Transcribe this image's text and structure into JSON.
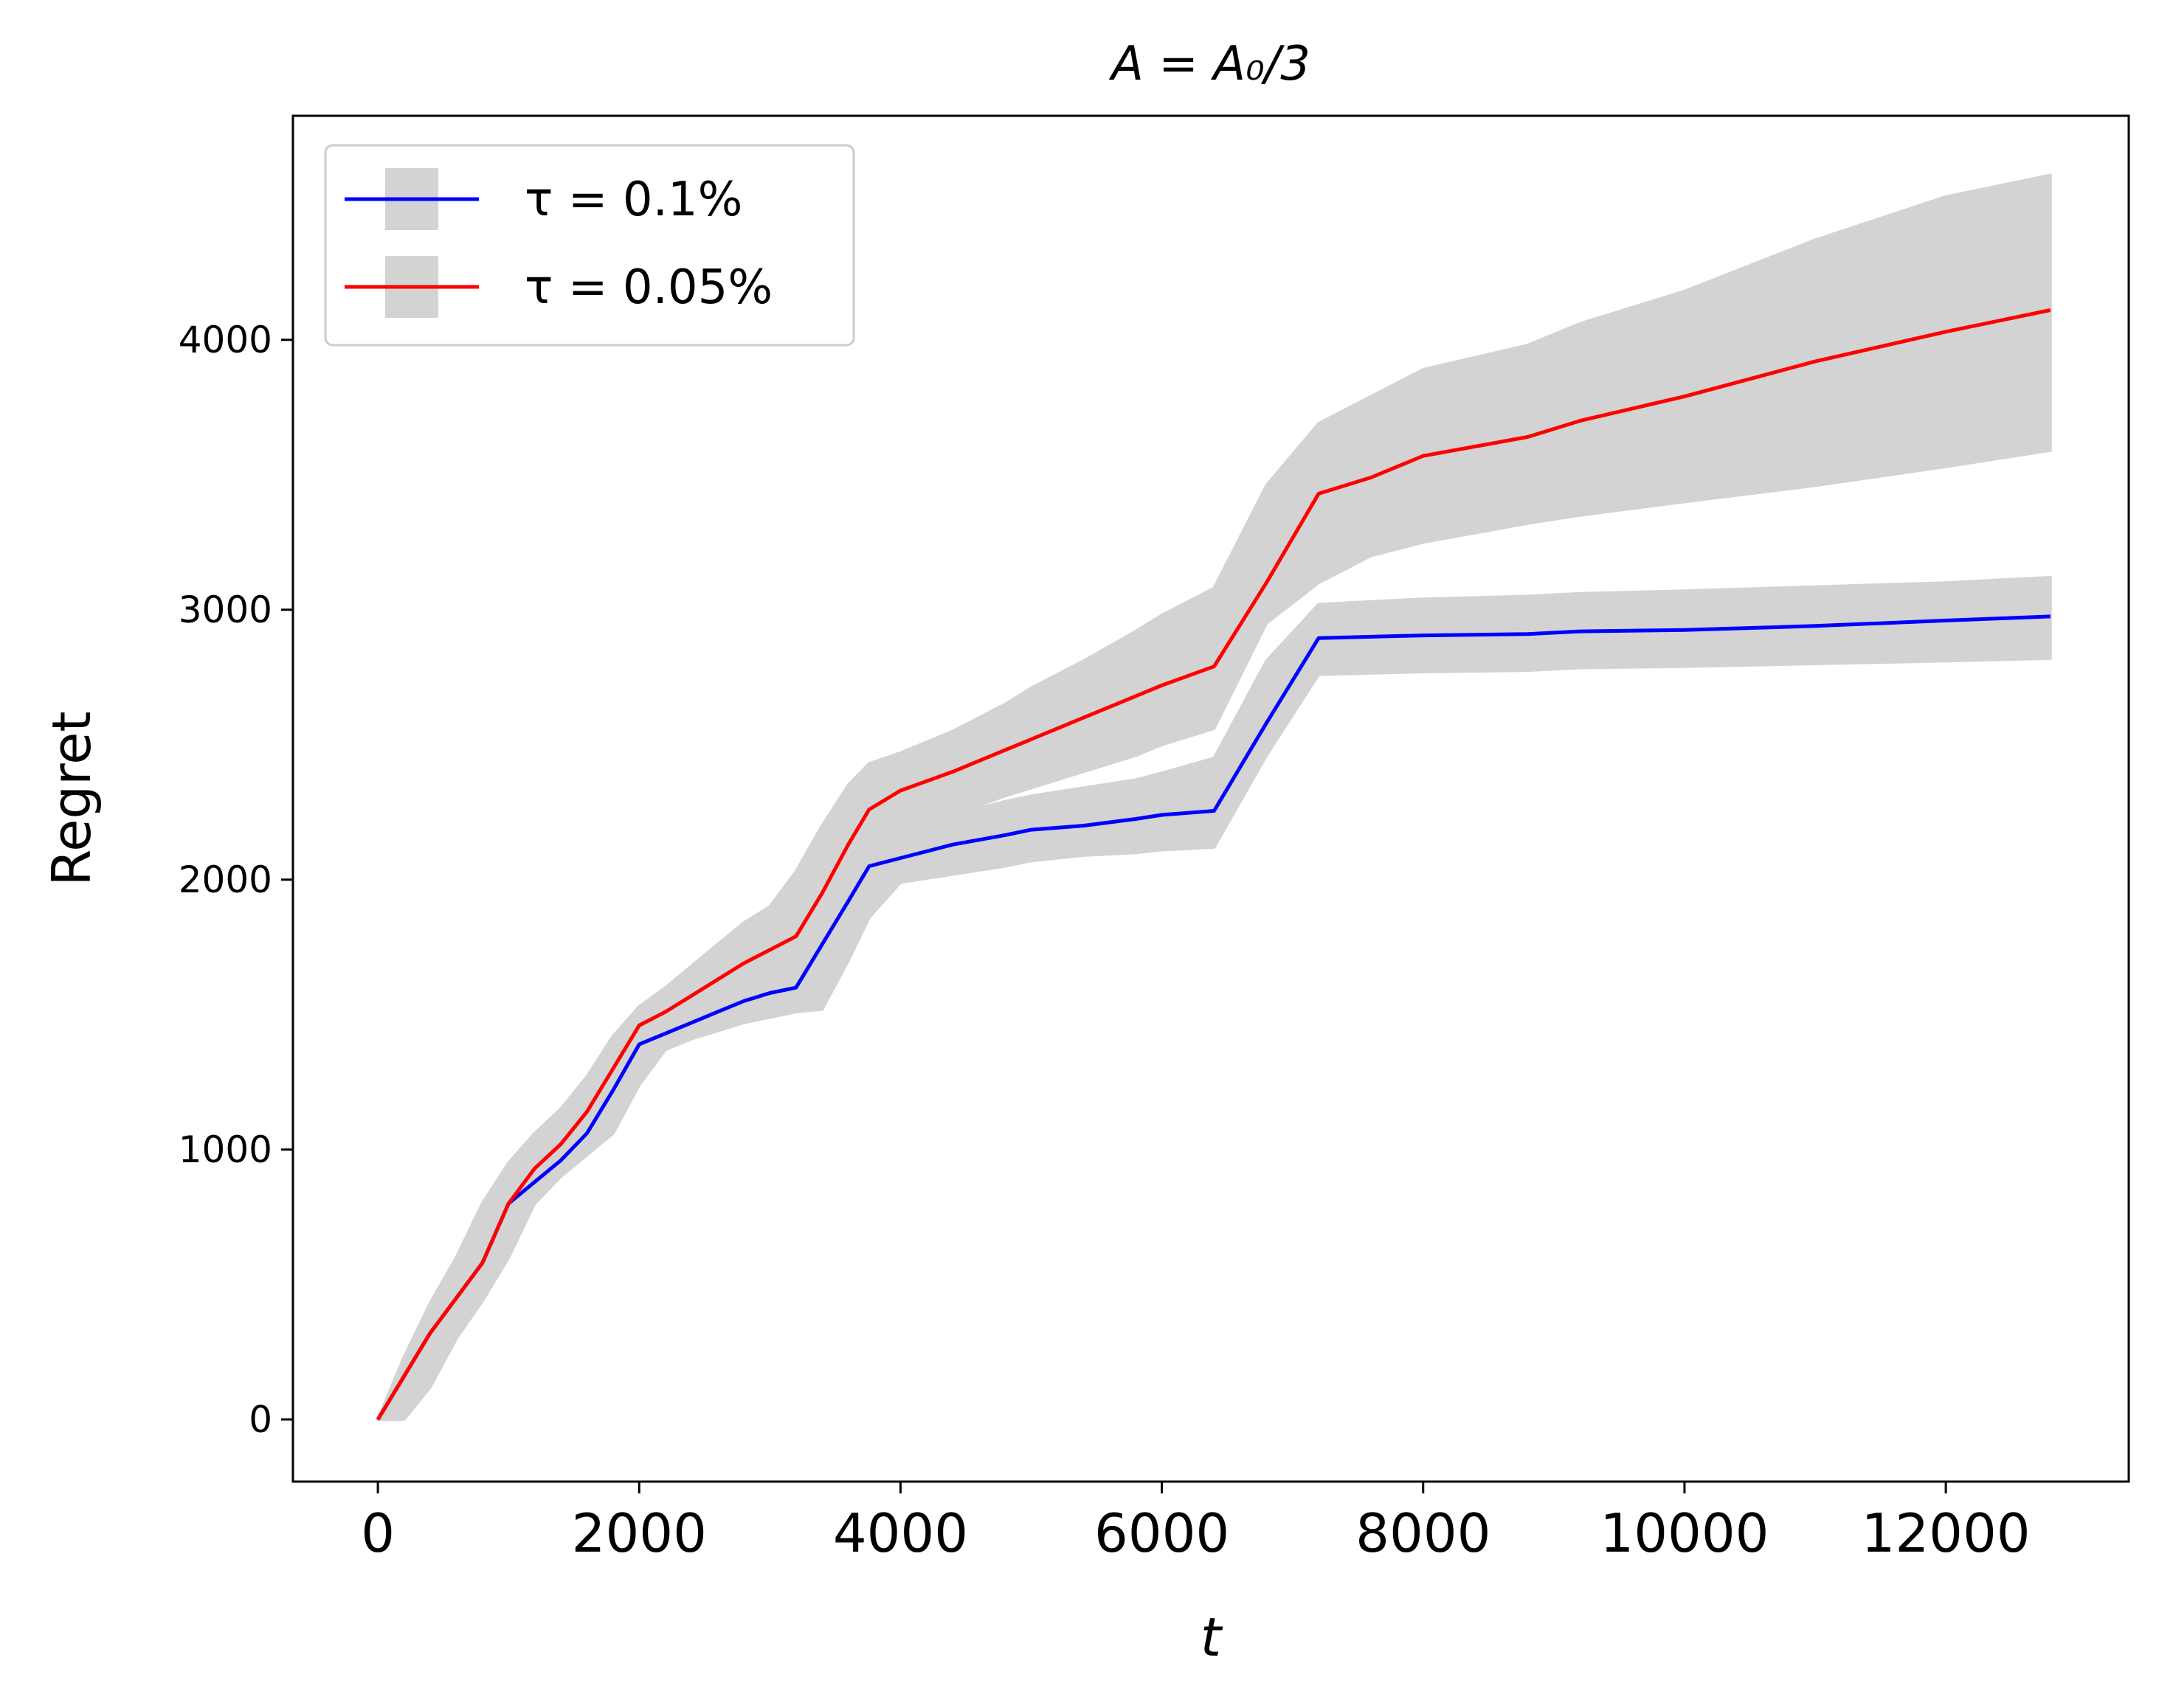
{
  "chart_data": {
    "type": "line",
    "title": "A = A₀/3",
    "xlabel": "t",
    "ylabel": "Regret",
    "xlim": [
      -650,
      13400
    ],
    "ylim": [
      -230,
      4830
    ],
    "xticks": [
      0,
      2000,
      4000,
      6000,
      8000,
      10000,
      12000
    ],
    "yticks": [
      0,
      1000,
      2000,
      3000,
      4000
    ],
    "legend_position": "upper-left",
    "band_color": "#d3d3d3",
    "series": [
      {
        "name": "τ = 0.1%",
        "color": "#0000ff",
        "x": [
          0,
          200,
          400,
          600,
          800,
          1000,
          1200,
          1400,
          1600,
          1800,
          2000,
          2200,
          2400,
          2600,
          2800,
          3000,
          3200,
          3400,
          3600,
          3760,
          4000,
          4400,
          4800,
          5000,
          5400,
          5800,
          6000,
          6400,
          6800,
          7200,
          7600,
          8000,
          8800,
          9200,
          10000,
          11000,
          12000,
          12800
        ],
        "y": [
          0,
          160,
          320,
          450,
          580,
          800,
          880,
          960,
          1060,
          1220,
          1390,
          1430,
          1470,
          1510,
          1550,
          1580,
          1600,
          1760,
          1920,
          2050,
          2080,
          2130,
          2165,
          2185,
          2200,
          2225,
          2240,
          2255,
          2580,
          2895,
          2900,
          2905,
          2910,
          2920,
          2925,
          2940,
          2960,
          2975
        ],
        "lower": [
          0,
          0,
          120,
          300,
          440,
          600,
          800,
          900,
          980,
          1060,
          1240,
          1370,
          1410,
          1440,
          1470,
          1490,
          1510,
          1520,
          1700,
          1860,
          1990,
          2020,
          2050,
          2070,
          2090,
          2100,
          2110,
          2120,
          2460,
          2760,
          2765,
          2770,
          2775,
          2785,
          2790,
          2800,
          2810,
          2820
        ],
        "upper": [
          0,
          230,
          430,
          600,
          800,
          950,
          1060,
          1150,
          1270,
          1420,
          1470,
          1500,
          1540,
          1580,
          1620,
          1660,
          1690,
          1830,
          2010,
          2130,
          2180,
          2240,
          2290,
          2310,
          2340,
          2370,
          2395,
          2450,
          2810,
          3020,
          3030,
          3040,
          3050,
          3060,
          3070,
          3085,
          3100,
          3120
        ]
      },
      {
        "name": "τ = 0.05%",
        "color": "#ff0000",
        "x": [
          0,
          200,
          400,
          600,
          800,
          1000,
          1200,
          1400,
          1600,
          1800,
          2000,
          2200,
          2400,
          2600,
          2800,
          3000,
          3200,
          3400,
          3600,
          3760,
          4000,
          4400,
          4800,
          5000,
          5400,
          5800,
          6000,
          6400,
          6800,
          7200,
          7600,
          8000,
          8800,
          9200,
          10000,
          11000,
          12000,
          12800
        ],
        "y": [
          0,
          160,
          320,
          450,
          580,
          800,
          930,
          1020,
          1140,
          1300,
          1460,
          1510,
          1570,
          1630,
          1690,
          1740,
          1790,
          1950,
          2130,
          2260,
          2330,
          2400,
          2480,
          2520,
          2600,
          2680,
          2720,
          2790,
          3100,
          3430,
          3490,
          3570,
          3640,
          3700,
          3790,
          3920,
          4030,
          4110
        ],
        "lower": [
          0,
          0,
          120,
          300,
          440,
          600,
          820,
          930,
          1040,
          1200,
          1370,
          1440,
          1500,
          1560,
          1610,
          1650,
          1700,
          1800,
          1960,
          2100,
          2180,
          2240,
          2310,
          2340,
          2400,
          2460,
          2500,
          2560,
          2950,
          3100,
          3200,
          3250,
          3320,
          3350,
          3400,
          3460,
          3530,
          3590
        ],
        "upper": [
          0,
          230,
          430,
          600,
          800,
          950,
          1060,
          1150,
          1270,
          1420,
          1530,
          1600,
          1680,
          1760,
          1840,
          1900,
          2030,
          2200,
          2350,
          2430,
          2470,
          2550,
          2650,
          2710,
          2810,
          2920,
          2980,
          3080,
          3460,
          3690,
          3790,
          3890,
          3980,
          4060,
          4180,
          4370,
          4530,
          4610
        ]
      }
    ]
  }
}
